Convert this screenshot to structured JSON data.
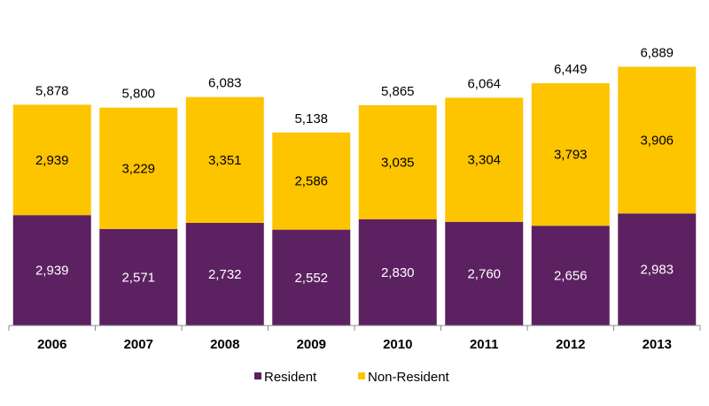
{
  "chart_data": {
    "type": "bar",
    "stacked": true,
    "categories": [
      "2006",
      "2007",
      "2008",
      "2009",
      "2010",
      "2011",
      "2012",
      "2013"
    ],
    "series": [
      {
        "name": "Resident",
        "color": "#5c2161",
        "label_color": "#ffffff",
        "values": [
          2939,
          2571,
          2732,
          2552,
          2830,
          2760,
          2656,
          2983
        ]
      },
      {
        "name": "Non-Resident",
        "color": "#fdc400",
        "label_color": "#000000",
        "values": [
          2939,
          3229,
          3351,
          2586,
          3035,
          3304,
          3793,
          3906
        ]
      }
    ],
    "totals": [
      5878,
      5800,
      6083,
      5138,
      5865,
      6064,
      6449,
      6889
    ],
    "title": "",
    "xlabel": "",
    "ylabel": "",
    "ylim": [
      0,
      7300
    ],
    "grid": false,
    "legend": "bottom-center"
  }
}
